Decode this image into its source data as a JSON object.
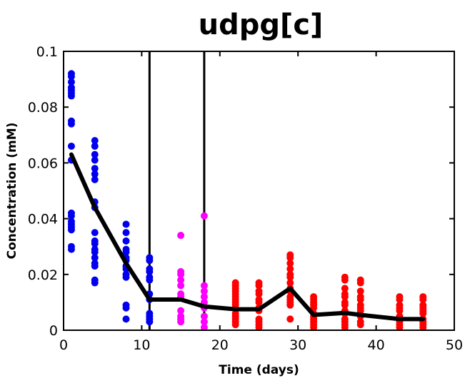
{
  "chart_data": {
    "type": "scatter",
    "title": "udpg[c]",
    "xlabel": "Time (days)",
    "ylabel": "Concentration (mM)",
    "xlim": [
      0,
      50
    ],
    "ylim": [
      0,
      0.1
    ],
    "xticks": [
      0,
      10,
      20,
      30,
      40,
      50
    ],
    "yticks": [
      0,
      0.02,
      0.04,
      0.06,
      0.08,
      0.1
    ],
    "xtick_labels": [
      "0",
      "10",
      "20",
      "30",
      "40",
      "50"
    ],
    "ytick_labels": [
      "0",
      "0.02",
      "0.04",
      "0.06",
      "0.08",
      "0.1"
    ],
    "grid": false,
    "colors": {
      "early": "#0000ee",
      "middle": "#ff00ff",
      "late": "#ff0000",
      "mean_line": "#000000",
      "vlines": "#000000"
    },
    "vertical_lines": [
      11,
      18
    ],
    "series": [
      {
        "color_key": "early",
        "points": [
          {
            "x": 1,
            "y": [
              0.092,
              0.091,
              0.089,
              0.087,
              0.086,
              0.085,
              0.084,
              0.075,
              0.074,
              0.066,
              0.061,
              0.042,
              0.041,
              0.039,
              0.038,
              0.037,
              0.036,
              0.03,
              0.029
            ]
          },
          {
            "x": 4,
            "y": [
              0.068,
              0.066,
              0.063,
              0.061,
              0.058,
              0.056,
              0.054,
              0.046,
              0.044,
              0.035,
              0.032,
              0.031,
              0.029,
              0.028,
              0.026,
              0.024,
              0.023,
              0.018,
              0.017
            ]
          },
          {
            "x": 8,
            "y": [
              0.038,
              0.035,
              0.032,
              0.029,
              0.028,
              0.026,
              0.025,
              0.023,
              0.022,
              0.02,
              0.019,
              0.009,
              0.008,
              0.004
            ]
          },
          {
            "x": 11,
            "y": [
              0.026,
              0.025,
              0.022,
              0.021,
              0.019,
              0.018,
              0.013,
              0.011,
              0.006,
              0.005,
              0.004,
              0.003
            ]
          }
        ]
      },
      {
        "color_key": "middle",
        "points": [
          {
            "x": 15,
            "y": [
              0.034,
              0.021,
              0.02,
              0.018,
              0.016,
              0.013,
              0.012,
              0.007,
              0.005,
              0.004,
              0.003
            ]
          },
          {
            "x": 18,
            "y": [
              0.041,
              0.016,
              0.014,
              0.012,
              0.01,
              0.008,
              0.005,
              0.003,
              0.001
            ]
          }
        ]
      },
      {
        "color_key": "late",
        "points": [
          {
            "x": 22,
            "y": [
              0.017,
              0.016,
              0.015,
              0.014,
              0.013,
              0.012,
              0.011,
              0.01,
              0.009,
              0.006,
              0.005,
              0.004,
              0.003,
              0.002
            ]
          },
          {
            "x": 25,
            "y": [
              0.017,
              0.016,
              0.014,
              0.013,
              0.011,
              0.01,
              0.008,
              0.007,
              0.004,
              0.003,
              0.002,
              0.001
            ]
          },
          {
            "x": 29,
            "y": [
              0.027,
              0.026,
              0.024,
              0.022,
              0.02,
              0.019,
              0.017,
              0.015,
              0.014,
              0.012,
              0.011,
              0.01,
              0.009,
              0.004
            ]
          },
          {
            "x": 32,
            "y": [
              0.012,
              0.011,
              0.01,
              0.009,
              0.008,
              0.006,
              0.005,
              0.004,
              0.003,
              0.002,
              0.001
            ]
          },
          {
            "x": 36,
            "y": [
              0.019,
              0.018,
              0.015,
              0.013,
              0.012,
              0.01,
              0.009,
              0.007,
              0.006,
              0.004,
              0.003,
              0.002,
              0.001
            ]
          },
          {
            "x": 38,
            "y": [
              0.018,
              0.017,
              0.014,
              0.012,
              0.011,
              0.009,
              0.008,
              0.007,
              0.005,
              0.003,
              0.002
            ]
          },
          {
            "x": 43,
            "y": [
              0.012,
              0.011,
              0.009,
              0.008,
              0.007,
              0.005,
              0.004,
              0.003,
              0.002,
              0.001
            ]
          },
          {
            "x": 46,
            "y": [
              0.012,
              0.011,
              0.009,
              0.008,
              0.007,
              0.006,
              0.004,
              0.003,
              0.002,
              0.001
            ]
          }
        ]
      }
    ],
    "mean_line": {
      "x": [
        1,
        4,
        8,
        11,
        15,
        18,
        22,
        25,
        29,
        32,
        36,
        38,
        43,
        46
      ],
      "y": [
        0.063,
        0.044,
        0.024,
        0.011,
        0.011,
        0.0085,
        0.0075,
        0.0075,
        0.015,
        0.0055,
        0.0062,
        0.0055,
        0.004,
        0.004
      ]
    }
  }
}
